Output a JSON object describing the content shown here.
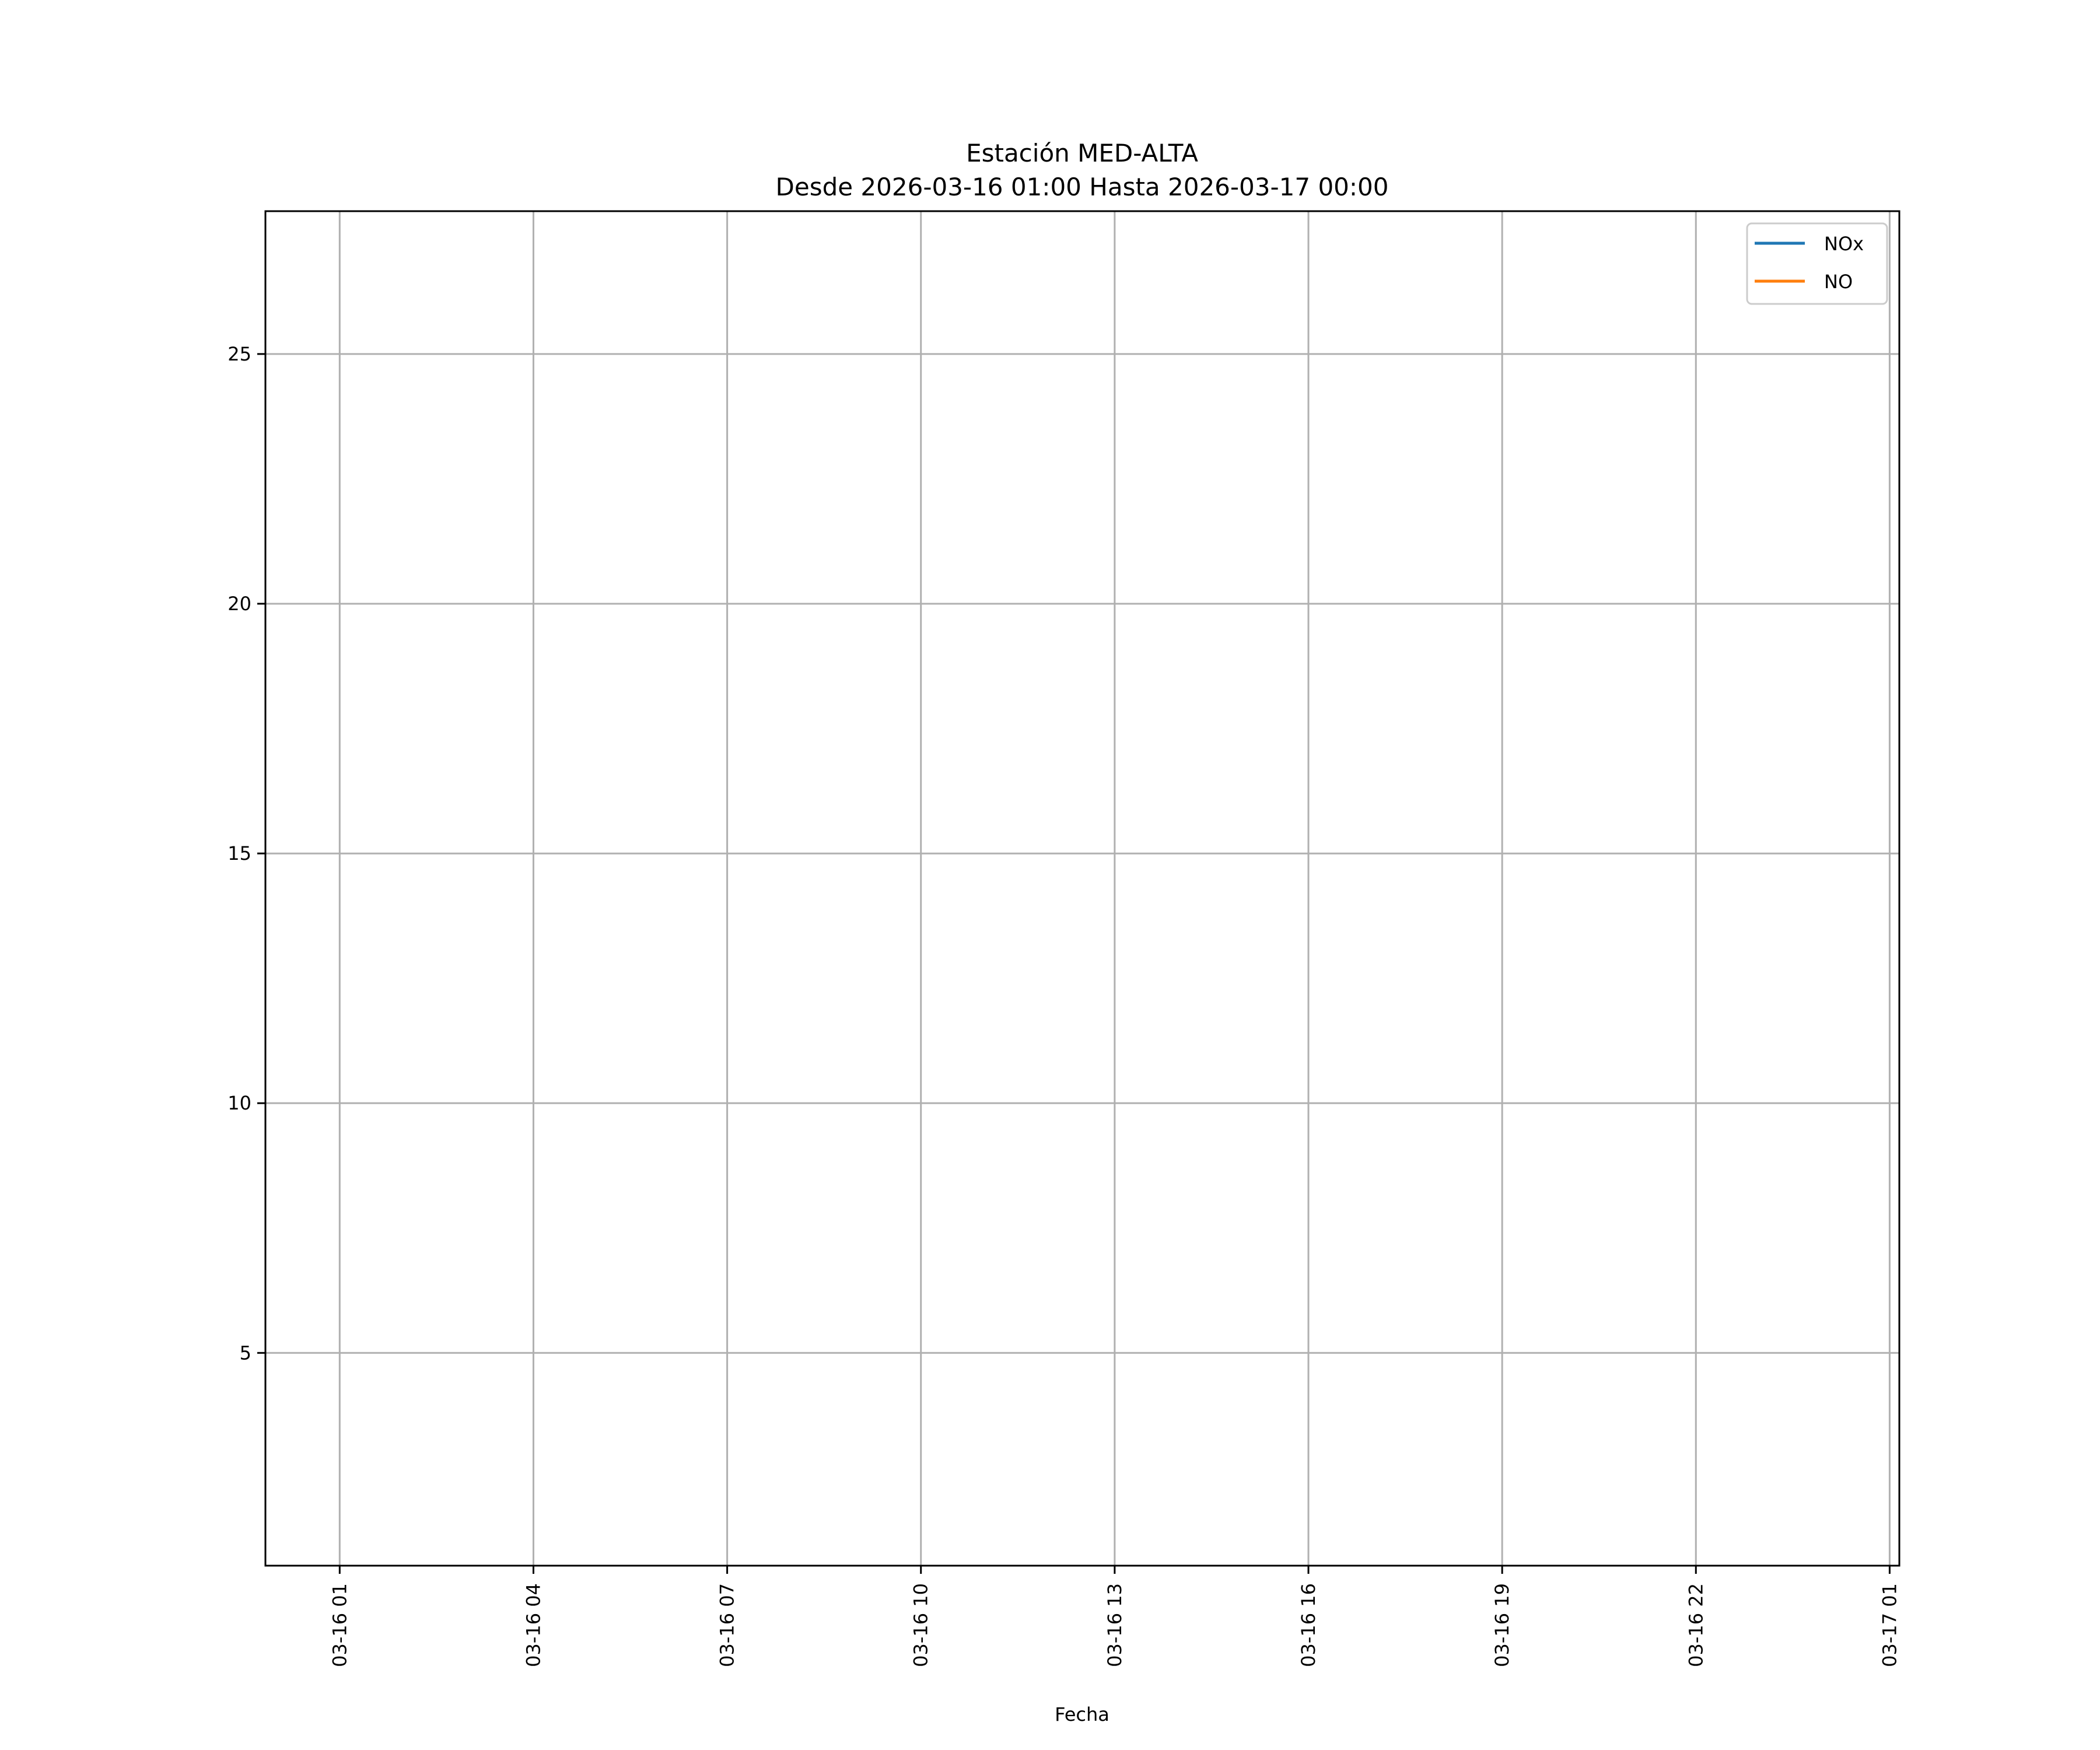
{
  "chart_data": {
    "type": "line",
    "title": "Estación MED-ALTA",
    "subtitle": "Desde 2026-03-16 01:00 Hasta 2026-03-17 00:00",
    "xlabel": "Fecha",
    "ylabel": "",
    "xlim": [
      "2026-03-15 23:51",
      "2026-03-17 01:09"
    ],
    "ylim": [
      0.74,
      27.86
    ],
    "grid": true,
    "legend_position": "top-right",
    "x_ticks": [
      {
        "value": "2026-03-16 01:00",
        "label": "03-16 01"
      },
      {
        "value": "2026-03-16 04:00",
        "label": "03-16 04"
      },
      {
        "value": "2026-03-16 07:00",
        "label": "03-16 07"
      },
      {
        "value": "2026-03-16 10:00",
        "label": "03-16 10"
      },
      {
        "value": "2026-03-16 13:00",
        "label": "03-16 13"
      },
      {
        "value": "2026-03-16 16:00",
        "label": "03-16 16"
      },
      {
        "value": "2026-03-16 19:00",
        "label": "03-16 19"
      },
      {
        "value": "2026-03-16 22:00",
        "label": "03-16 22"
      },
      {
        "value": "2026-03-17 01:00",
        "label": "03-17 01"
      }
    ],
    "y_ticks": [
      {
        "value": 5,
        "label": "5"
      },
      {
        "value": 10,
        "label": "10"
      },
      {
        "value": 15,
        "label": "15"
      },
      {
        "value": 20,
        "label": "20"
      },
      {
        "value": 25,
        "label": "25"
      }
    ],
    "series": [
      {
        "name": "NOx",
        "color": "#1f77b4",
        "x": [],
        "y": []
      },
      {
        "name": "NO",
        "color": "#ff7f0e",
        "x": [],
        "y": []
      }
    ]
  }
}
